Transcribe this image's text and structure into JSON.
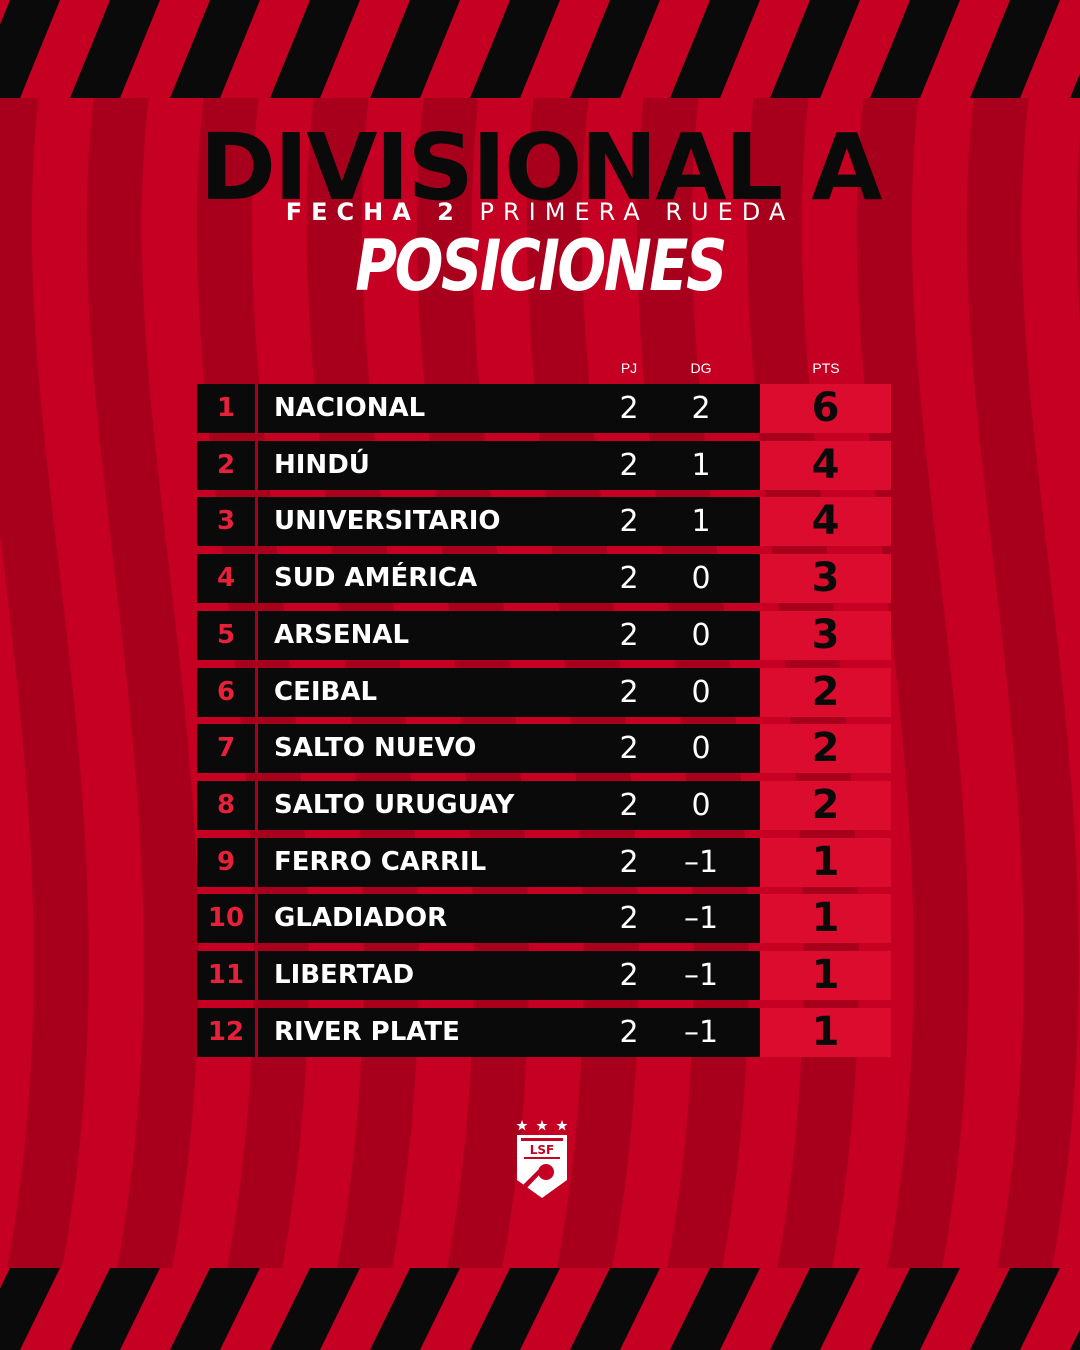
{
  "header": {
    "title": "DIVISIONAL A",
    "subtitle_bold": "FECHA 2",
    "subtitle_rest": "PRIMERA RUEDA",
    "heading": "POSICIONES"
  },
  "table": {
    "columns": {
      "pj": "PJ",
      "dg": "DG",
      "pts": "PTS"
    },
    "rows": [
      {
        "pos": "1",
        "team": "NACIONAL",
        "pj": "2",
        "dg": "2",
        "pts": "6"
      },
      {
        "pos": "2",
        "team": "HINDÚ",
        "pj": "2",
        "dg": "1",
        "pts": "4"
      },
      {
        "pos": "3",
        "team": "UNIVERSITARIO",
        "pj": "2",
        "dg": "1",
        "pts": "4"
      },
      {
        "pos": "4",
        "team": "SUD AMÉRICA",
        "pj": "2",
        "dg": "0",
        "pts": "3"
      },
      {
        "pos": "5",
        "team": "ARSENAL",
        "pj": "2",
        "dg": "0",
        "pts": "3"
      },
      {
        "pos": "6",
        "team": "CEIBAL",
        "pj": "2",
        "dg": "0",
        "pts": "2"
      },
      {
        "pos": "7",
        "team": "SALTO NUEVO",
        "pj": "2",
        "dg": "0",
        "pts": "2"
      },
      {
        "pos": "8",
        "team": "SALTO URUGUAY",
        "pj": "2",
        "dg": "0",
        "pts": "2"
      },
      {
        "pos": "9",
        "team": "FERRO CARRIL",
        "pj": "2",
        "dg": "–1",
        "pts": "1"
      },
      {
        "pos": "10",
        "team": "GLADIADOR",
        "pj": "2",
        "dg": "–1",
        "pts": "1"
      },
      {
        "pos": "11",
        "team": "LIBERTAD",
        "pj": "2",
        "dg": "–1",
        "pts": "1"
      },
      {
        "pos": "12",
        "team": "RIVER PLATE",
        "pj": "2",
        "dg": "–1",
        "pts": "1"
      }
    ]
  },
  "logo": {
    "text": "LSF",
    "icon": "league-shield-logo"
  },
  "colors": {
    "background": "#c50022",
    "stripe": "#a8001c",
    "black": "#0a0a0a",
    "pts_cell": "#dc0c2e",
    "pos_text": "#e8213a"
  }
}
